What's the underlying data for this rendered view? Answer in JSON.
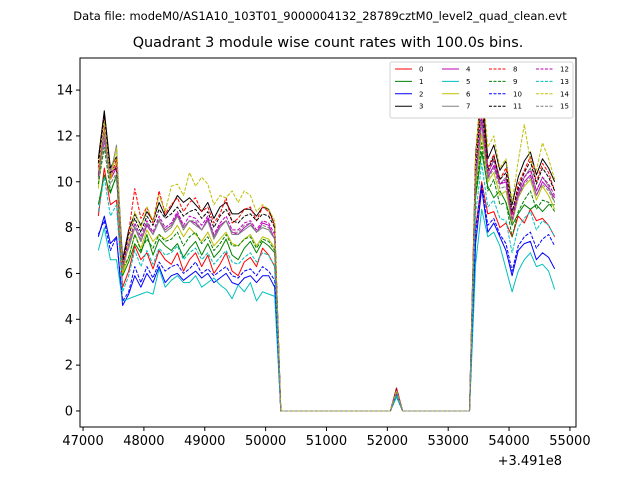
{
  "figure": {
    "suptitle": "Data file: modeM0/AS1A10_103T01_9000004132_28789cztM0_level2_quad_clean.evt"
  },
  "chart_data": {
    "type": "line",
    "title": "Quadrant 3 module wise count rates with 100.0s bins.",
    "xlabel": "",
    "ylabel": "",
    "x_offset_label": "+3.491e8",
    "xlim": [
      46950,
      55100
    ],
    "ylim": [
      -0.7,
      15.4
    ],
    "xticks": [
      47000,
      48000,
      49000,
      50000,
      51000,
      52000,
      53000,
      54000,
      55000
    ],
    "yticks": [
      0,
      2,
      4,
      6,
      8,
      10,
      12,
      14
    ],
    "grid": false,
    "legend": {
      "placement": "top-right",
      "ncol": 4
    },
    "x": [
      47250,
      47350,
      47450,
      47550,
      47650,
      47750,
      47850,
      47950,
      48050,
      48150,
      48250,
      48350,
      48450,
      48550,
      48650,
      48750,
      48850,
      48950,
      49050,
      49150,
      49250,
      49350,
      49450,
      49550,
      49650,
      49750,
      49850,
      49950,
      50050,
      50150,
      50250,
      50350,
      51950,
      52050,
      52150,
      52250,
      52350,
      53350,
      53450,
      53550,
      53650,
      53750,
      53850,
      53950,
      54050,
      54150,
      54250,
      54350,
      54450,
      54550,
      54650,
      54750
    ],
    "series": [
      {
        "name": "0",
        "color": "#ff0000",
        "dashed": false,
        "values": [
          8.5,
          10.6,
          9.0,
          9.2,
          5.4,
          6.1,
          7.2,
          6.6,
          6.9,
          6.2,
          7.0,
          6.6,
          6.4,
          6.9,
          6.1,
          6.6,
          6.9,
          6.3,
          6.8,
          6.0,
          6.4,
          6.9,
          6.1,
          5.9,
          6.5,
          6.7,
          6.3,
          7.1,
          6.8,
          6.3,
          0.0,
          0.0,
          0.0,
          0.0,
          0.9,
          0.0,
          0.0,
          0.0,
          8.0,
          10.0,
          8.6,
          8.7,
          8.0,
          8.2,
          7.6,
          8.5,
          8.2,
          8.8,
          8.3,
          8.4,
          8.1,
          7.6
        ]
      },
      {
        "name": "1",
        "color": "#008000",
        "dashed": false,
        "values": [
          9.0,
          10.3,
          9.5,
          10.3,
          5.9,
          6.5,
          7.3,
          6.9,
          7.7,
          6.8,
          7.5,
          7.2,
          7.0,
          7.3,
          6.7,
          7.1,
          7.4,
          6.8,
          7.3,
          6.7,
          7.0,
          7.5,
          6.8,
          6.6,
          7.1,
          7.4,
          6.9,
          7.4,
          7.2,
          6.9,
          0.0,
          0.0,
          0.0,
          0.0,
          0.8,
          0.0,
          0.0,
          0.0,
          9.3,
          11.3,
          9.8,
          9.3,
          9.6,
          9.1,
          8.1,
          8.6,
          9.0,
          8.8,
          9.0,
          8.7,
          9.0,
          9.0
        ]
      },
      {
        "name": "2",
        "color": "#0000ff",
        "dashed": false,
        "values": [
          7.6,
          8.5,
          7.3,
          7.6,
          4.6,
          5.1,
          5.9,
          5.4,
          6.0,
          5.6,
          6.3,
          5.6,
          5.9,
          6.0,
          5.7,
          5.9,
          6.1,
          5.8,
          6.0,
          5.6,
          5.8,
          6.0,
          5.6,
          5.5,
          5.8,
          5.9,
          5.6,
          5.9,
          5.9,
          5.4,
          0.0,
          0.0,
          0.0,
          0.0,
          0.7,
          0.0,
          0.0,
          0.0,
          7.3,
          9.7,
          7.8,
          8.2,
          7.6,
          7.0,
          5.9,
          7.0,
          7.3,
          7.4,
          6.6,
          6.9,
          6.7,
          6.2
        ]
      },
      {
        "name": "3",
        "color": "#000000",
        "dashed": false,
        "values": [
          11.0,
          13.1,
          10.6,
          11.1,
          6.6,
          7.9,
          8.6,
          8.1,
          8.7,
          8.3,
          9.1,
          8.5,
          8.9,
          9.4,
          9.1,
          9.3,
          9.0,
          8.7,
          9.1,
          8.4,
          8.9,
          9.1,
          8.6,
          8.6,
          8.8,
          8.8,
          8.5,
          8.9,
          8.8,
          8.1,
          0.0,
          0.0,
          0.0,
          0.0,
          1.0,
          0.0,
          0.0,
          0.0,
          11.2,
          14.2,
          11.0,
          11.6,
          10.5,
          10.9,
          9.0,
          10.2,
          10.9,
          11.3,
          10.3,
          11.0,
          10.6,
          10.0
        ]
      },
      {
        "name": "4",
        "color": "#bf00bf",
        "dashed": false,
        "values": [
          10.2,
          11.8,
          10.1,
          10.6,
          6.1,
          7.3,
          8.0,
          7.4,
          8.1,
          7.7,
          8.3,
          7.9,
          8.1,
          8.6,
          8.0,
          8.3,
          8.2,
          7.9,
          8.4,
          7.6,
          8.1,
          8.3,
          7.8,
          7.7,
          8.0,
          8.2,
          7.8,
          8.2,
          8.1,
          7.5,
          0.0,
          0.0,
          0.0,
          0.0,
          0.9,
          0.0,
          0.0,
          0.0,
          10.1,
          12.6,
          10.2,
          10.7,
          9.9,
          10.0,
          8.3,
          9.4,
          10.0,
          10.3,
          9.4,
          10.0,
          9.7,
          9.3
        ]
      },
      {
        "name": "5",
        "color": "#00bfbf",
        "dashed": false,
        "values": [
          7.0,
          8.0,
          6.6,
          6.6,
          4.8,
          4.9,
          5.0,
          5.1,
          5.2,
          5.1,
          6.2,
          5.4,
          5.7,
          5.9,
          5.6,
          5.6,
          5.9,
          5.4,
          5.6,
          5.8,
          5.5,
          5.3,
          4.9,
          5.5,
          5.2,
          5.6,
          4.8,
          5.2,
          5.1,
          5.0,
          0.0,
          0.0,
          0.0,
          0.0,
          0.6,
          0.0,
          0.0,
          0.0,
          6.4,
          8.8,
          7.6,
          7.8,
          7.2,
          6.2,
          5.2,
          6.1,
          6.6,
          6.9,
          6.3,
          6.4,
          6.1,
          5.3
        ]
      },
      {
        "name": "6",
        "color": "#bfbf00",
        "dashed": false,
        "values": [
          9.7,
          12.2,
          10.1,
          10.9,
          6.0,
          6.7,
          7.7,
          7.1,
          7.9,
          7.4,
          7.7,
          7.5,
          7.7,
          8.1,
          7.6,
          8.0,
          7.7,
          7.4,
          7.8,
          7.2,
          7.5,
          7.8,
          7.3,
          7.2,
          7.5,
          7.7,
          7.2,
          7.6,
          7.5,
          7.1,
          0.0,
          0.0,
          0.0,
          0.0,
          0.8,
          0.0,
          0.0,
          0.0,
          9.6,
          12.1,
          10.0,
          10.4,
          9.4,
          9.6,
          8.2,
          9.3,
          9.8,
          10.1,
          9.2,
          9.8,
          9.4,
          8.8
        ]
      },
      {
        "name": "7",
        "color": "#808080",
        "dashed": false,
        "values": [
          10.4,
          12.1,
          10.3,
          11.6,
          6.4,
          7.1,
          8.0,
          7.4,
          8.2,
          7.7,
          8.3,
          7.8,
          8.0,
          8.5,
          7.9,
          8.3,
          8.1,
          7.9,
          8.3,
          7.5,
          8.0,
          8.3,
          7.7,
          7.7,
          7.9,
          8.1,
          7.8,
          8.0,
          7.9,
          7.5,
          0.0,
          0.0,
          0.0,
          0.0,
          0.9,
          0.0,
          0.0,
          0.0,
          10.1,
          12.9,
          10.3,
          11.0,
          9.9,
          10.2,
          8.6,
          9.5,
          10.2,
          10.6,
          9.6,
          10.2,
          9.8,
          9.1
        ]
      },
      {
        "name": "8",
        "color": "#ff0000",
        "dashed": true,
        "values": [
          10.6,
          12.8,
          10.2,
          11.0,
          6.2,
          7.8,
          9.7,
          8.4,
          8.9,
          8.2,
          9.6,
          8.6,
          9.0,
          9.3,
          8.7,
          9.1,
          9.3,
          8.7,
          8.9,
          8.2,
          8.6,
          9.3,
          8.2,
          8.4,
          8.8,
          8.9,
          8.3,
          8.9,
          8.7,
          8.1,
          0.0,
          0.0,
          0.0,
          0.0,
          1.0,
          0.0,
          0.0,
          0.0,
          11.0,
          13.6,
          10.6,
          11.2,
          10.1,
          10.6,
          8.6,
          9.9,
          10.5,
          11.1,
          10.0,
          10.8,
          10.4,
          9.6
        ]
      },
      {
        "name": "9",
        "color": "#008000",
        "dashed": true,
        "values": [
          9.9,
          11.5,
          9.6,
          10.2,
          6.2,
          6.7,
          7.7,
          7.0,
          7.5,
          7.1,
          7.7,
          7.4,
          7.5,
          7.8,
          7.2,
          7.6,
          7.8,
          7.3,
          7.6,
          7.0,
          7.3,
          7.7,
          7.2,
          7.2,
          7.5,
          7.6,
          7.1,
          7.5,
          7.4,
          7.0,
          0.0,
          0.0,
          0.0,
          0.0,
          0.8,
          0.0,
          0.0,
          0.0,
          9.5,
          11.7,
          9.6,
          10.1,
          9.0,
          9.1,
          7.6,
          8.7,
          9.2,
          9.6,
          8.8,
          9.2,
          9.1,
          8.7
        ]
      },
      {
        "name": "10",
        "color": "#0000ff",
        "dashed": true,
        "values": [
          7.7,
          8.3,
          7.0,
          7.6,
          4.8,
          5.2,
          6.3,
          5.6,
          6.3,
          5.8,
          6.5,
          6.1,
          6.3,
          6.4,
          6.0,
          6.2,
          6.5,
          6.0,
          6.2,
          5.9,
          6.1,
          6.3,
          5.9,
          5.8,
          6.1,
          6.2,
          5.9,
          6.3,
          6.1,
          5.7,
          0.0,
          0.0,
          0.0,
          0.0,
          0.7,
          0.0,
          0.0,
          0.0,
          7.8,
          9.9,
          8.1,
          8.4,
          7.7,
          7.3,
          6.1,
          7.2,
          7.6,
          7.8,
          7.1,
          7.5,
          7.7,
          7.2
        ]
      },
      {
        "name": "11",
        "color": "#000000",
        "dashed": true,
        "values": [
          10.8,
          12.9,
          10.4,
          10.6,
          6.5,
          7.7,
          8.4,
          7.8,
          8.5,
          8.1,
          8.8,
          8.4,
          8.6,
          8.9,
          8.5,
          8.7,
          8.8,
          8.4,
          8.7,
          8.0,
          8.5,
          8.8,
          8.3,
          8.2,
          8.5,
          8.6,
          8.3,
          8.6,
          8.5,
          8.0,
          0.0,
          0.0,
          0.0,
          0.0,
          0.9,
          0.0,
          0.0,
          0.0,
          10.6,
          13.5,
          10.5,
          11.1,
          10.1,
          10.4,
          8.7,
          9.7,
          10.4,
          10.9,
          9.9,
          10.6,
          10.2,
          9.6
        ]
      },
      {
        "name": "12",
        "color": "#bf00bf",
        "dashed": true,
        "values": [
          10.3,
          12.4,
          10.3,
          10.7,
          6.3,
          7.4,
          8.2,
          7.6,
          8.3,
          7.8,
          8.5,
          8.0,
          8.2,
          8.7,
          8.1,
          8.5,
          8.4,
          8.1,
          8.5,
          7.7,
          8.2,
          8.5,
          7.9,
          7.9,
          8.2,
          8.3,
          7.9,
          8.3,
          8.2,
          7.7,
          0.0,
          0.0,
          0.0,
          0.0,
          0.9,
          0.0,
          0.0,
          0.0,
          10.3,
          12.9,
          10.4,
          10.9,
          9.9,
          10.1,
          8.4,
          9.6,
          10.2,
          10.5,
          9.6,
          10.2,
          9.9,
          9.4
        ]
      },
      {
        "name": "13",
        "color": "#00bfbf",
        "dashed": true,
        "values": [
          8.7,
          10.2,
          8.5,
          9.0,
          5.2,
          5.9,
          7.0,
          6.3,
          7.0,
          6.4,
          7.1,
          6.8,
          6.9,
          7.2,
          6.6,
          6.9,
          7.1,
          6.6,
          6.9,
          6.4,
          6.7,
          7.0,
          6.5,
          6.4,
          6.7,
          6.9,
          6.5,
          6.9,
          6.8,
          6.3,
          0.0,
          0.0,
          0.0,
          0.0,
          0.7,
          0.0,
          0.0,
          0.0,
          8.6,
          10.8,
          8.9,
          9.2,
          8.4,
          8.3,
          6.9,
          8.0,
          8.4,
          8.7,
          7.9,
          8.3,
          8.1,
          7.6
        ]
      },
      {
        "name": "14",
        "color": "#bfbf00",
        "dashed": true,
        "values": [
          10.5,
          12.6,
          10.1,
          11.5,
          6.0,
          7.3,
          8.7,
          8.0,
          8.9,
          8.3,
          9.4,
          8.7,
          9.8,
          9.9,
          9.4,
          10.4,
          9.8,
          10.2,
          9.9,
          9.0,
          9.4,
          9.3,
          9.6,
          9.1,
          9.6,
          9.4,
          8.7,
          9.0,
          8.8,
          8.3,
          0.0,
          0.0,
          0.0,
          0.0,
          0.9,
          0.0,
          0.0,
          0.0,
          11.0,
          14.7,
          11.5,
          12.0,
          10.6,
          11.0,
          9.1,
          10.9,
          12.5,
          10.9,
          10.5,
          11.7,
          11.0,
          10.1
        ]
      },
      {
        "name": "15",
        "color": "#808080",
        "dashed": true,
        "values": [
          10.1,
          11.9,
          9.9,
          10.4,
          6.2,
          7.2,
          8.1,
          7.5,
          8.2,
          7.7,
          8.4,
          7.9,
          8.1,
          8.5,
          8.0,
          8.3,
          8.3,
          7.9,
          8.3,
          7.6,
          8.0,
          8.3,
          7.8,
          7.8,
          8.1,
          8.2,
          7.8,
          8.1,
          8.0,
          7.5,
          0.0,
          0.0,
          0.0,
          0.0,
          0.8,
          0.0,
          0.0,
          0.0,
          10.0,
          12.5,
          10.1,
          10.6,
          9.7,
          9.8,
          8.2,
          9.3,
          9.9,
          10.2,
          9.4,
          9.9,
          9.6,
          9.1
        ]
      }
    ]
  }
}
